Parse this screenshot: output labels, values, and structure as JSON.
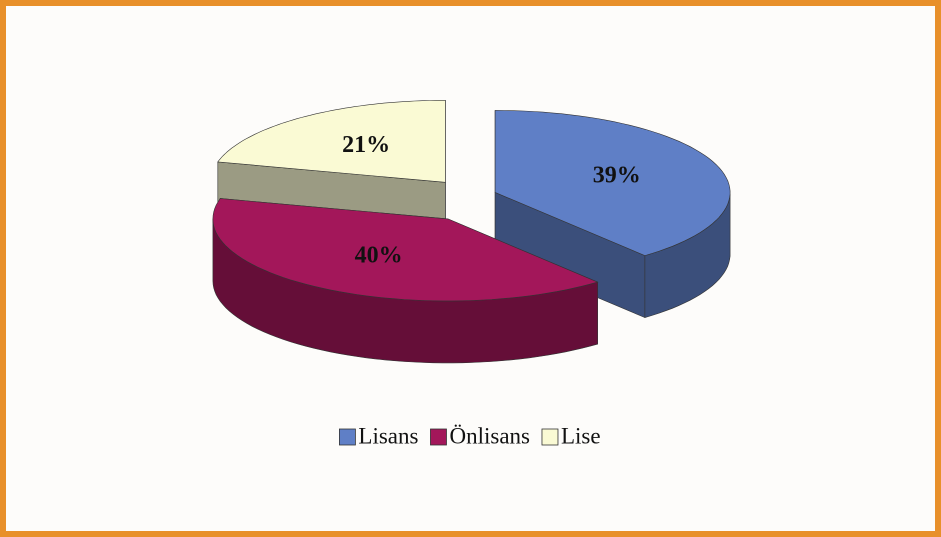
{
  "chart_data": {
    "type": "pie",
    "categories": [
      "Lisans",
      "Önlisans",
      "Lise"
    ],
    "values": [
      39,
      40,
      21
    ],
    "value_labels": [
      "39%",
      "40%",
      "21%"
    ],
    "colors": [
      "#5f7fc6",
      "#a3175a",
      "#fafad4"
    ],
    "legend": "bottom"
  }
}
